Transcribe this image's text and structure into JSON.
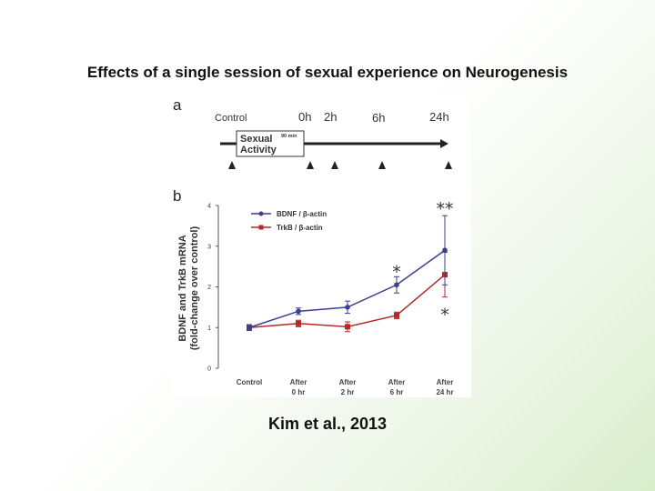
{
  "slide": {
    "title": "Effects of a single session of sexual experience on Neurogenesis",
    "citation": "Kim et al., 2013"
  },
  "panel_a": {
    "label": "a",
    "control_label": "Control",
    "time_labels": [
      "0h",
      "2h",
      "6h",
      "24h"
    ],
    "box_line1": "Sexual",
    "box_line2": "Activity",
    "box_duration": "90 min",
    "arrowhead_count": 5
  },
  "colors": {
    "bdnf": "#3b3f8f",
    "trkb": "#b22a2a",
    "axis": "#555555"
  },
  "chart_data": {
    "type": "line",
    "panel_label": "b",
    "title": "",
    "ylabel_line1": "BDNF and TrkB mRNA",
    "ylabel_line2": "(fold-change over control)",
    "xlabel": "",
    "ylim": [
      0,
      4
    ],
    "yticks": [
      "0",
      "1",
      "2",
      "3",
      "4"
    ],
    "categories": [
      {
        "line1": "Control",
        "line2": ""
      },
      {
        "line1": "After",
        "line2": "0 hr"
      },
      {
        "line1": "After",
        "line2": "2 hr"
      },
      {
        "line1": "After",
        "line2": "6 hr"
      },
      {
        "line1": "After",
        "line2": "24 hr"
      }
    ],
    "series": [
      {
        "name": "BDNF / β-actin",
        "marker": "circle",
        "values": [
          1.0,
          1.4,
          1.5,
          2.05,
          2.9
        ],
        "errors": [
          0.07,
          0.08,
          0.15,
          0.2,
          0.85
        ]
      },
      {
        "name": "TrkB / β-actin",
        "marker": "square",
        "values": [
          1.0,
          1.1,
          1.02,
          1.3,
          2.3
        ],
        "errors": [
          0.07,
          0.08,
          0.12,
          0.08,
          0.55
        ]
      }
    ],
    "annotations": [
      {
        "text": "**",
        "category": 4,
        "value": 4.0
      },
      {
        "text": "*",
        "category": 3,
        "value": 2.45
      },
      {
        "text": "*",
        "category": 4,
        "value": 1.4
      }
    ]
  }
}
